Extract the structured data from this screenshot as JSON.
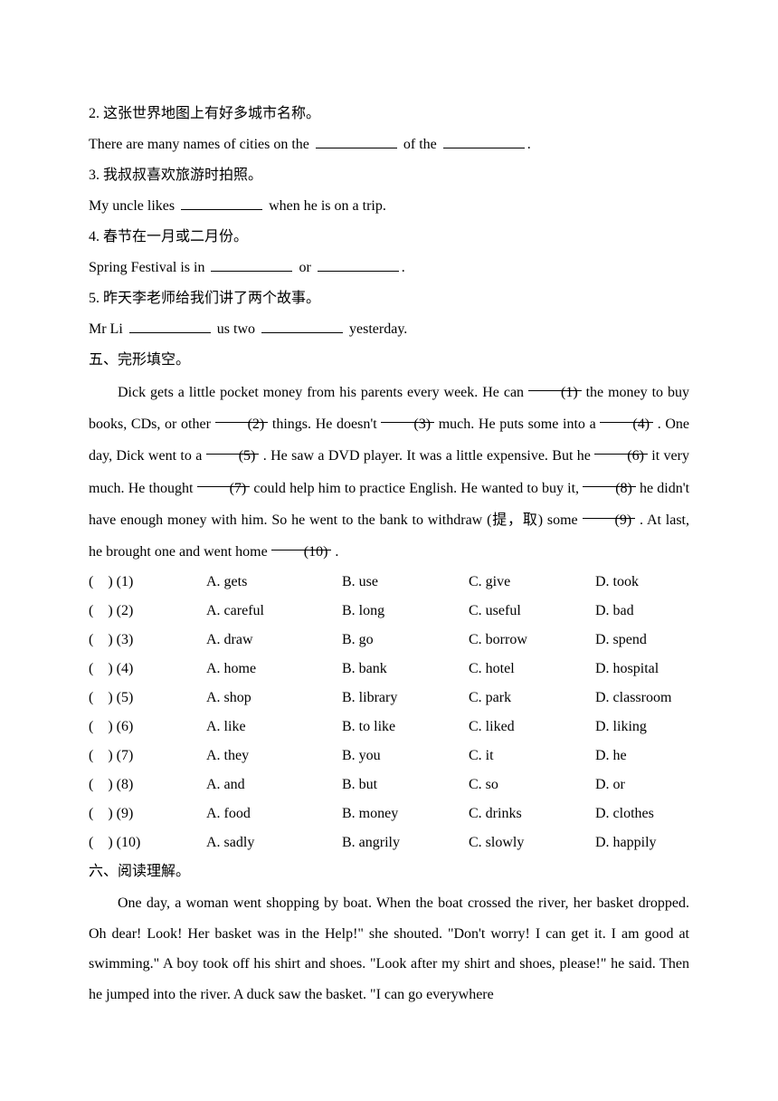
{
  "q2": {
    "cn": "2. 这张世界地图上有好多城市名称。",
    "en_a": "There are many names of cities on the ",
    "en_b": " of the ",
    "en_c": "."
  },
  "q3": {
    "cn": "3. 我叔叔喜欢旅游时拍照。",
    "en_a": "My uncle likes ",
    "en_b": " when he is on a trip."
  },
  "q4": {
    "cn": "4. 春节在一月或二月份。",
    "en_a": "Spring Festival is in ",
    "en_b": " or ",
    "en_c": "."
  },
  "q5": {
    "cn": "5. 昨天李老师给我们讲了两个故事。",
    "en_a": "Mr Li ",
    "en_b": " us two ",
    "en_c": " yesterday."
  },
  "section5_title": "五、完形填空。",
  "cloze": {
    "p1": "Dick gets a little pocket money from his parents every week. He can ",
    "b1": "(1)",
    "p2": " the money to buy books, CDs, or other ",
    "b2": "(2)",
    "p3": " things. He doesn't ",
    "b3": "(3)",
    "p4": " much. He puts some into a ",
    "b4": "(4)",
    "p5": ". One day, Dick went to a ",
    "b5": "(5)",
    "p6": ". He saw a DVD player. It was a little expensive. But he ",
    "b6": "(6)",
    "p7": " it very much. He thought ",
    "b7": "(7)",
    "p8": " could help him to practice English. He wanted to buy it, ",
    "b8": "(8)",
    "p9": " he didn't have enough money with him. So he went to the bank to withdraw (提，取) some ",
    "b9": "(9)",
    "p10": ". At last, he brought one and went home ",
    "b10": "(10)",
    "p11": "."
  },
  "options": [
    {
      "n": "(1)",
      "a": "A. gets",
      "b": "B. use",
      "c": "C. give",
      "d": "D. took"
    },
    {
      "n": "(2)",
      "a": "A. careful",
      "b": "B. long",
      "c": "C. useful",
      "d": "D. bad"
    },
    {
      "n": "(3)",
      "a": "A. draw",
      "b": "B. go",
      "c": "C. borrow",
      "d": "D. spend"
    },
    {
      "n": "(4)",
      "a": "A. home",
      "b": "B. bank",
      "c": "C. hotel",
      "d": "D. hospital"
    },
    {
      "n": "(5)",
      "a": "A. shop",
      "b": "B. library",
      "c": "C. park",
      "d": "D. classroom"
    },
    {
      "n": "(6)",
      "a": "A. like",
      "b": "B. to like",
      "c": "C. liked",
      "d": "D. liking"
    },
    {
      "n": "(7)",
      "a": "A. they",
      "b": "B. you",
      "c": "C. it",
      "d": "D. he"
    },
    {
      "n": "(8)",
      "a": "A. and",
      "b": "B. but",
      "c": "C. so",
      "d": "D. or"
    },
    {
      "n": "(9)",
      "a": "A. food",
      "b": "B. money",
      "c": "C. drinks",
      "d": "D. clothes"
    },
    {
      "n": "(10)",
      "a": "A. sadly",
      "b": "B. angrily",
      "c": "C. slowly",
      "d": "D. happily"
    }
  ],
  "section6_title": "六、阅读理解。",
  "reading": "One day, a woman went shopping by boat. When the boat crossed the river, her basket dropped. Oh dear! Look! Her basket was in the Help!\" she shouted. \"Don't worry! I can get it. I am good at swimming.\" A boy took off his shirt and shoes. \"Look after my shirt and shoes, please!\" he said. Then he jumped into the river. A duck saw the basket. \"I can go everywhere"
}
